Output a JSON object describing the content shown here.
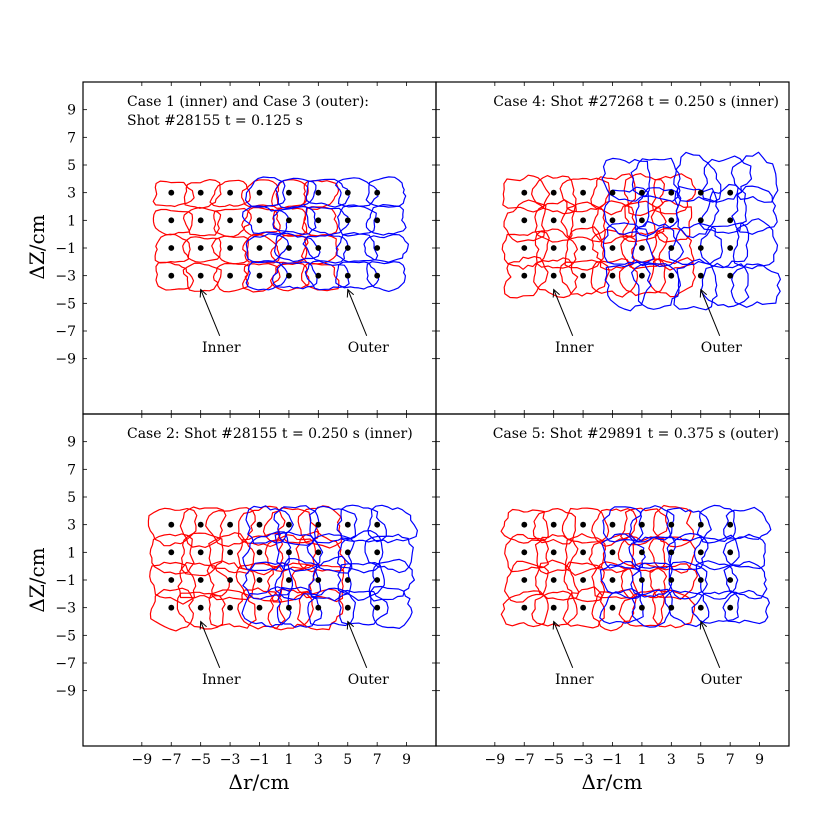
{
  "chart_data": {
    "type": "scatter",
    "description_fields": {
      "xlabel": "Δr/cm",
      "ylabel": "ΔZ/cm",
      "xlim": [
        -13,
        11
      ],
      "ylim": [
        -13,
        11
      ]
    },
    "xticks": [
      "−9",
      "−7",
      "−5",
      "−3",
      "−1",
      "1",
      "3",
      "5",
      "7",
      "9"
    ],
    "xtick_values": [
      -9,
      -7,
      -5,
      -3,
      -1,
      1,
      3,
      5,
      7,
      9
    ],
    "yticks": [
      "9",
      "7",
      "5",
      "3",
      "1",
      "−1",
      "−3",
      "−5",
      "−7",
      "−9"
    ],
    "ytick_values": [
      9,
      7,
      5,
      3,
      1,
      -1,
      -3,
      -5,
      -7,
      -9
    ],
    "colors": {
      "inner": "#ff0000",
      "outer": "#0000ff",
      "point": "#000000"
    },
    "panels": [
      {
        "id": "case1-3",
        "title_lines": [
          "Case 1 (inner) and Case 3 (outer):",
          "Shot #28155 t = 0.125 s"
        ],
        "title_align": "left",
        "show_yticks": true,
        "show_xticks": false,
        "inner_label": "Inner",
        "outer_label": "Outer",
        "inner_ann": {
          "text_xy": [
            -3.6,
            -8.5
          ],
          "arrow_to": [
            -5,
            -4
          ]
        },
        "outer_ann": {
          "text_xy": [
            6.4,
            -8.5
          ],
          "arrow_to": [
            5,
            -4
          ]
        },
        "seed": 11,
        "inner": {
          "cols": [
            -7,
            -5,
            -3,
            -1,
            1,
            3
          ],
          "rows": [
            3,
            1,
            -1,
            -3
          ],
          "w": 2.3,
          "h": 1.75,
          "shift_x": 0.0,
          "shear": 0.0,
          "jitter": 0.12,
          "grow": 0.0
        },
        "outer": {
          "cols": [
            3,
            5,
            7
          ],
          "rows": [
            3,
            1,
            -1,
            -3
          ],
          "w": 2.6,
          "h": 1.9,
          "shift_x": 0.3,
          "shear": 0.0,
          "jitter": 0.12,
          "grow": 0.0
        },
        "extra_outer_cols": [
          -1,
          1
        ],
        "points": {
          "cols": [
            -7,
            -5,
            -3,
            -1,
            1,
            3,
            5,
            7
          ],
          "rows": [
            3,
            1,
            -1,
            -3
          ]
        }
      },
      {
        "id": "case4",
        "title_lines": [
          "Case 4: Shot #27268 t = 0.250 s (inner)"
        ],
        "title_align": "right",
        "show_yticks": false,
        "show_xticks": false,
        "inner_label": "Inner",
        "outer_label": "Outer",
        "inner_ann": {
          "text_xy": [
            -3.6,
            -8.5
          ],
          "arrow_to": [
            -5,
            -4
          ]
        },
        "outer_ann": {
          "text_xy": [
            6.4,
            -8.5
          ],
          "arrow_to": [
            5,
            -4
          ]
        },
        "seed": 27,
        "inner": {
          "cols": [
            -7,
            -5,
            -3,
            -1,
            1,
            3
          ],
          "rows": [
            3,
            1,
            -1,
            -3
          ],
          "w": 2.6,
          "h": 2.5,
          "shift_x": 0.0,
          "shear": 0.0,
          "jitter": 0.18,
          "grow": 0.0
        },
        "outer": {
          "cols": [
            3,
            5,
            7
          ],
          "rows": [
            3,
            1,
            -1,
            -3
          ],
          "w": 2.9,
          "h": 3.0,
          "shift_x": 1.4,
          "shear": 0.0,
          "jitter": 0.2,
          "grow": 0.0
        },
        "extra_outer_cols": [
          -1,
          1
        ],
        "outer_shift_y": [
          1.0,
          0.7,
          0.2,
          -0.7
        ],
        "points": {
          "cols": [
            -7,
            -5,
            -3,
            -1,
            1,
            3,
            5,
            7
          ],
          "rows": [
            3,
            1,
            -1,
            -3
          ]
        }
      },
      {
        "id": "case2",
        "title_lines": [
          "Case 2: Shot #28155 t = 0.250 s (inner)"
        ],
        "title_align": "left",
        "show_yticks": true,
        "show_xticks": true,
        "inner_label": "Inner",
        "outer_label": "Outer",
        "inner_ann": {
          "text_xy": [
            -3.6,
            -8.5
          ],
          "arrow_to": [
            -5,
            -4
          ]
        },
        "outer_ann": {
          "text_xy": [
            6.4,
            -8.5
          ],
          "arrow_to": [
            5,
            -4
          ]
        },
        "seed": 42,
        "inner": {
          "cols": [
            -7,
            -5,
            -3,
            -1,
            1,
            3
          ],
          "rows": [
            3,
            1,
            -1,
            -3
          ],
          "w": 2.8,
          "h": 2.5,
          "shift_x": 0.0,
          "shear": 0.0,
          "jitter": 0.18,
          "grow": 0.0
        },
        "outer": {
          "cols": [
            3,
            5,
            7
          ],
          "rows": [
            3,
            1,
            -1,
            -3
          ],
          "w": 2.8,
          "h": 2.6,
          "shift_x": 0.6,
          "shear": 0.0,
          "jitter": 0.18,
          "grow": 0.0
        },
        "extra_outer_cols": [
          -1,
          1
        ],
        "points": {
          "cols": [
            -7,
            -5,
            -3,
            -1,
            1,
            3,
            5,
            7
          ],
          "rows": [
            3,
            1,
            -1,
            -3
          ]
        }
      },
      {
        "id": "case5",
        "title_lines": [
          "Case 5: Shot #29891 t = 0.375 s (outer)"
        ],
        "title_align": "right",
        "show_yticks": false,
        "show_xticks": true,
        "inner_label": "Inner",
        "outer_label": "Outer",
        "inner_ann": {
          "text_xy": [
            -3.6,
            -8.5
          ],
          "arrow_to": [
            -5,
            -4
          ]
        },
        "outer_ann": {
          "text_xy": [
            6.4,
            -8.5
          ],
          "arrow_to": [
            5,
            -4
          ]
        },
        "seed": 58,
        "inner": {
          "cols": [
            -7,
            -5,
            -3,
            -1,
            1,
            3
          ],
          "rows": [
            3,
            1,
            -1,
            -3
          ],
          "w": 2.6,
          "h": 2.4,
          "shift_x": 0.0,
          "shear": 0.0,
          "jitter": 0.16,
          "grow": 0.0
        },
        "outer": {
          "cols": [
            3,
            5,
            7
          ],
          "rows": [
            3,
            1,
            -1,
            -3
          ],
          "w": 2.6,
          "h": 2.3,
          "shift_x": 0.8,
          "shear": 0.0,
          "jitter": 0.16,
          "grow": 0.0
        },
        "extra_outer_cols": [
          -1,
          1
        ],
        "points": {
          "cols": [
            -7,
            -5,
            -3,
            -1,
            1,
            3,
            5,
            7
          ],
          "rows": [
            3,
            1,
            -1,
            -3
          ]
        }
      }
    ],
    "shared_xlabel": "Δr/cm",
    "shared_ylabel": "ΔZ/cm"
  }
}
